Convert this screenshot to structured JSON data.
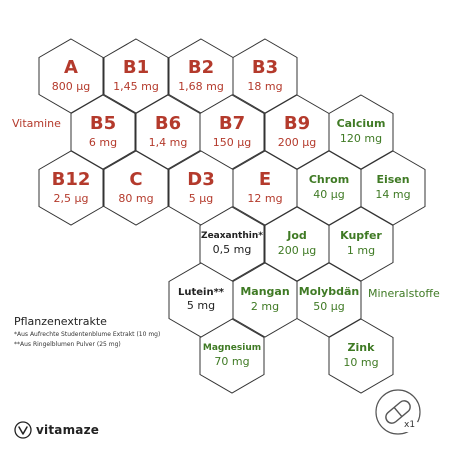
{
  "vitamins": [
    {
      "name": "A",
      "amount": "800 µg"
    },
    {
      "name": "B1",
      "amount": "1,45 mg"
    },
    {
      "name": "B2",
      "amount": "1,68 mg"
    },
    {
      "name": "B3",
      "amount": "18 mg"
    },
    {
      "name": "B5",
      "amount": "6 mg"
    },
    {
      "name": "B6",
      "amount": "1,4 mg"
    },
    {
      "name": "B7",
      "amount": "150 µg"
    },
    {
      "name": "B9",
      "amount": "200 µg"
    },
    {
      "name": "B12",
      "amount": "2,5 µg"
    },
    {
      "name": "C",
      "amount": "80 mg"
    },
    {
      "name": "D3",
      "amount": "5 µg"
    },
    {
      "name": "E",
      "amount": "12 mg"
    }
  ],
  "minerals": [
    {
      "name": "Calcium",
      "amount": "120 mg"
    },
    {
      "name": "Chrom",
      "amount": "40 µg"
    },
    {
      "name": "Eisen",
      "amount": "14 mg"
    },
    {
      "name": "Jod",
      "amount": "200 µg"
    },
    {
      "name": "Kupfer",
      "amount": "1 mg"
    },
    {
      "name": "Mangan",
      "amount": "2 mg"
    },
    {
      "name": "Molybdän",
      "amount": "50 µg"
    },
    {
      "name": "Magnesium",
      "amount": "70 mg"
    },
    {
      "name": "Zink",
      "amount": "10 mg"
    }
  ],
  "plants": [
    {
      "name": "Zeaxanthin*",
      "amount": "0,5 mg"
    },
    {
      "name": "Lutein**",
      "amount": "5 mg"
    }
  ],
  "labels": {
    "vitamine": "Vitamine",
    "mineralstoffe": "Mineralstoffe",
    "pflanzenextrakte": "Pflanzenextrakte",
    "note1": "*Aus Aufrechte Studentenblume Extrakt (10 mg)",
    "note2": "**Aus Ringelblumen Pulver (25 mg)",
    "brand": "vitamaze",
    "pill_count": "x1"
  },
  "colors": {
    "vitamin": "#b43a2c",
    "mineral": "#3f7a24",
    "plant": "#222222"
  }
}
